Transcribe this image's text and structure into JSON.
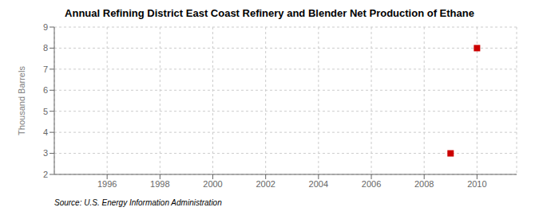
{
  "chart_data": {
    "type": "scatter",
    "title": "Annual Refining District East Coast Refinery and Blender Net Production of Ethane",
    "ylabel": "Thousand Barrels",
    "annotation": "Source: U.S. Energy Information Administration",
    "x": [
      2009,
      2010
    ],
    "values": [
      3,
      8
    ],
    "color": "#cc0000",
    "marker": "square",
    "xlim": [
      1994.0,
      2011.5
    ],
    "ylim": [
      2,
      9
    ],
    "xticks": [
      1996,
      1998,
      2000,
      2002,
      2004,
      2006,
      2008,
      2010
    ],
    "yticks": [
      2,
      3,
      4,
      5,
      6,
      7,
      8,
      9
    ],
    "grid": true
  }
}
